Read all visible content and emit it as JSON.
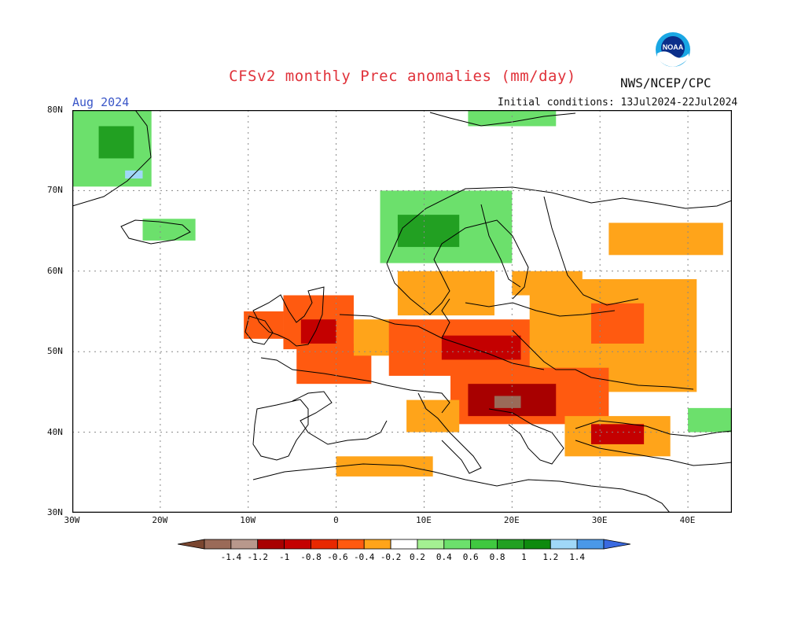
{
  "title": "CFSv2 monthly Prec anomalies (mm/day)",
  "org": "NWS/NCEP/CPC",
  "month": "Aug 2024",
  "initial_conditions": "Initial conditions: 13Jul2024-22Jul2024",
  "logo": {
    "icon": "noaa-logo-icon",
    "text": "NOAA"
  },
  "axes": {
    "lat": [
      {
        "label": "80N",
        "value": 80
      },
      {
        "label": "70N",
        "value": 70
      },
      {
        "label": "60N",
        "value": 60
      },
      {
        "label": "50N",
        "value": 50
      },
      {
        "label": "40N",
        "value": 40
      },
      {
        "label": "30N",
        "value": 30
      }
    ],
    "lon": [
      {
        "label": "30W",
        "value": -30
      },
      {
        "label": "20W",
        "value": -20
      },
      {
        "label": "10W",
        "value": -10
      },
      {
        "label": "0",
        "value": 0
      },
      {
        "label": "10E",
        "value": 10
      },
      {
        "label": "20E",
        "value": 20
      },
      {
        "label": "30E",
        "value": 30
      },
      {
        "label": "40E",
        "value": 40
      }
    ],
    "lon_range": [
      -30,
      45
    ],
    "lat_range": [
      30,
      80
    ],
    "grid": true
  },
  "colorbar": {
    "labels": [
      "-1.4",
      "-1.2",
      "-1",
      "-0.8",
      "-0.6",
      "-0.4",
      "-0.2",
      "0.2",
      "0.4",
      "0.6",
      "0.8",
      "1",
      "1.2",
      "1.4"
    ],
    "colors": [
      "#7a4630",
      "#9a6a58",
      "#b8988c",
      "#a80000",
      "#c40000",
      "#e82800",
      "#ff5a10",
      "#ffa41a",
      "#ffffff",
      "#a4f092",
      "#6ce06c",
      "#40c840",
      "#22a022",
      "#0e8a0e",
      "#a0d8f8",
      "#4a98e8",
      "#3a6ae0"
    ]
  },
  "regions": [
    {
      "name": "greenland-wet",
      "color": "#6ce06c",
      "lon": [
        -30,
        -21
      ],
      "lat": [
        70.5,
        80
      ]
    },
    {
      "name": "greenland-core",
      "color": "#22a022",
      "lon": [
        -27,
        -23
      ],
      "lat": [
        74,
        78
      ]
    },
    {
      "name": "greenland-blue",
      "color": "#a0d8f8",
      "lon": [
        -24,
        -22
      ],
      "lat": [
        71.5,
        72.5
      ]
    },
    {
      "name": "iceland-wet",
      "color": "#6ce06c",
      "lon": [
        -22,
        -16
      ],
      "lat": [
        63.8,
        66.5
      ]
    },
    {
      "name": "svalbard-wet",
      "color": "#6ce06c",
      "lon": [
        15,
        25
      ],
      "lat": [
        78,
        80
      ]
    },
    {
      "name": "norway-wet",
      "color": "#6ce06c",
      "lon": [
        5,
        20
      ],
      "lat": [
        61,
        70
      ]
    },
    {
      "name": "norway-core",
      "color": "#22a022",
      "lon": [
        7,
        14
      ],
      "lat": [
        63,
        67
      ]
    },
    {
      "name": "russia-north-dry",
      "color": "#ffa41a",
      "lon": [
        31,
        44
      ],
      "lat": [
        62,
        66
      ]
    },
    {
      "name": "ireland-dry",
      "color": "#ff5a10",
      "lon": [
        -10.5,
        -6
      ],
      "lat": [
        51.6,
        55
      ]
    },
    {
      "name": "uk-dry",
      "color": "#ff5a10",
      "lon": [
        -6,
        2
      ],
      "lat": [
        50.3,
        57
      ]
    },
    {
      "name": "uk-core",
      "color": "#c40000",
      "lon": [
        -4,
        0
      ],
      "lat": [
        51,
        54
      ]
    },
    {
      "name": "france-dry",
      "color": "#ff5a10",
      "lon": [
        -4.5,
        4
      ],
      "lat": [
        46,
        51
      ]
    },
    {
      "name": "benelux-dry",
      "color": "#ffa41a",
      "lon": [
        2,
        8
      ],
      "lat": [
        49.5,
        54
      ]
    },
    {
      "name": "scandinavia-south-dry",
      "color": "#ffa41a",
      "lon": [
        7,
        18
      ],
      "lat": [
        54.5,
        60
      ]
    },
    {
      "name": "central-europe-dry",
      "color": "#ff5a10",
      "lon": [
        6,
        24
      ],
      "lat": [
        47,
        54
      ]
    },
    {
      "name": "central-europe-core",
      "color": "#c40000",
      "lon": [
        12,
        21
      ],
      "lat": [
        49,
        52
      ]
    },
    {
      "name": "eastern-europe-dry",
      "color": "#ffa41a",
      "lon": [
        22,
        41
      ],
      "lat": [
        45,
        59
      ]
    },
    {
      "name": "russia-core",
      "color": "#ff5a10",
      "lon": [
        29,
        35
      ],
      "lat": [
        51,
        56
      ]
    },
    {
      "name": "balkans-dry",
      "color": "#ff5a10",
      "lon": [
        13,
        31
      ],
      "lat": [
        41,
        48
      ]
    },
    {
      "name": "balkans-core",
      "color": "#a80000",
      "lon": [
        15,
        25
      ],
      "lat": [
        42,
        46
      ]
    },
    {
      "name": "balkans-deep",
      "color": "#9a6a58",
      "lon": [
        18,
        21
      ],
      "lat": [
        43,
        44.5
      ]
    },
    {
      "name": "turkey-dry",
      "color": "#ffa41a",
      "lon": [
        26,
        38
      ],
      "lat": [
        37,
        42
      ]
    },
    {
      "name": "turkey-core",
      "color": "#c40000",
      "lon": [
        29,
        35
      ],
      "lat": [
        38.5,
        41
      ]
    },
    {
      "name": "caucasus-wet",
      "color": "#6ce06c",
      "lon": [
        40,
        45
      ],
      "lat": [
        40,
        43
      ]
    },
    {
      "name": "north-africa-dry",
      "color": "#ffa41a",
      "lon": [
        0,
        11
      ],
      "lat": [
        34.5,
        37
      ]
    },
    {
      "name": "italy-dry",
      "color": "#ffa41a",
      "lon": [
        8,
        14
      ],
      "lat": [
        40,
        44
      ]
    },
    {
      "name": "baltic-dry",
      "color": "#ffa41a",
      "lon": [
        20,
        28
      ],
      "lat": [
        57,
        60
      ]
    }
  ]
}
